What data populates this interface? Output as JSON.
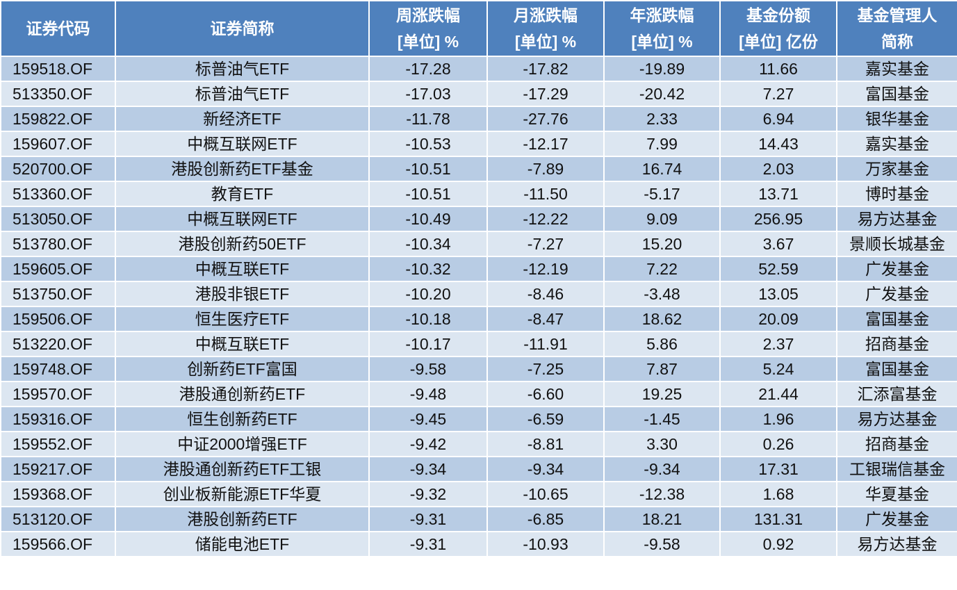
{
  "table": {
    "header": [
      [
        "证券代码"
      ],
      [
        "证券简称"
      ],
      [
        "周涨跌幅",
        "[单位] %"
      ],
      [
        "月涨跌幅",
        "[单位] %"
      ],
      [
        "年涨跌幅",
        "[单位] %"
      ],
      [
        "基金份额",
        "[单位] 亿份"
      ],
      [
        "基金管理人",
        "简称"
      ]
    ],
    "rows": [
      [
        "159518.OF",
        "标普油气ETF",
        "-17.28",
        "-17.82",
        "-19.89",
        "11.66",
        "嘉实基金"
      ],
      [
        "513350.OF",
        "标普油气ETF",
        "-17.03",
        "-17.29",
        "-20.42",
        "7.27",
        "富国基金"
      ],
      [
        "159822.OF",
        "新经济ETF",
        "-11.78",
        "-27.76",
        "2.33",
        "6.94",
        "银华基金"
      ],
      [
        "159607.OF",
        "中概互联网ETF",
        "-10.53",
        "-12.17",
        "7.99",
        "14.43",
        "嘉实基金"
      ],
      [
        "520700.OF",
        "港股创新药ETF基金",
        "-10.51",
        "-7.89",
        "16.74",
        "2.03",
        "万家基金"
      ],
      [
        "513360.OF",
        "教育ETF",
        "-10.51",
        "-11.50",
        "-5.17",
        "13.71",
        "博时基金"
      ],
      [
        "513050.OF",
        "中概互联网ETF",
        "-10.49",
        "-12.22",
        "9.09",
        "256.95",
        "易方达基金"
      ],
      [
        "513780.OF",
        "港股创新药50ETF",
        "-10.34",
        "-7.27",
        "15.20",
        "3.67",
        "景顺长城基金"
      ],
      [
        "159605.OF",
        "中概互联ETF",
        "-10.32",
        "-12.19",
        "7.22",
        "52.59",
        "广发基金"
      ],
      [
        "513750.OF",
        "港股非银ETF",
        "-10.20",
        "-8.46",
        "-3.48",
        "13.05",
        "广发基金"
      ],
      [
        "159506.OF",
        "恒生医疗ETF",
        "-10.18",
        "-8.47",
        "18.62",
        "20.09",
        "富国基金"
      ],
      [
        "513220.OF",
        "中概互联ETF",
        "-10.17",
        "-11.91",
        "5.86",
        "2.37",
        "招商基金"
      ],
      [
        "159748.OF",
        "创新药ETF富国",
        "-9.58",
        "-7.25",
        "7.87",
        "5.24",
        "富国基金"
      ],
      [
        "159570.OF",
        "港股通创新药ETF",
        "-9.48",
        "-6.60",
        "19.25",
        "21.44",
        "汇添富基金"
      ],
      [
        "159316.OF",
        "恒生创新药ETF",
        "-9.45",
        "-6.59",
        "-1.45",
        "1.96",
        "易方达基金"
      ],
      [
        "159552.OF",
        "中证2000增强ETF",
        "-9.42",
        "-8.81",
        "3.30",
        "0.26",
        "招商基金"
      ],
      [
        "159217.OF",
        "港股通创新药ETF工银",
        "-9.34",
        "-9.34",
        "-9.34",
        "17.31",
        "工银瑞信基金"
      ],
      [
        "159368.OF",
        "创业板新能源ETF华夏",
        "-9.32",
        "-10.65",
        "-12.38",
        "1.68",
        "华夏基金"
      ],
      [
        "513120.OF",
        "港股创新药ETF",
        "-9.31",
        "-6.85",
        "18.21",
        "131.31",
        "广发基金"
      ],
      [
        "159566.OF",
        "储能电池ETF",
        "-9.31",
        "-10.93",
        "-9.58",
        "0.92",
        "易方达基金"
      ]
    ]
  }
}
